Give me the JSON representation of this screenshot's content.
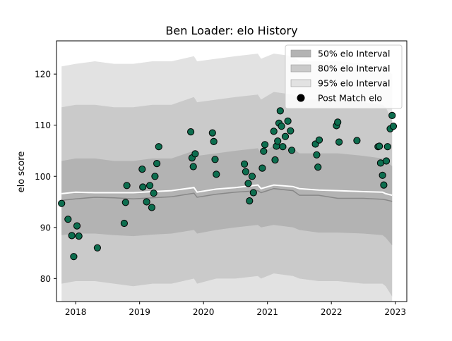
{
  "chart_data": {
    "type": "scatter",
    "title": "Ben Loader: elo History",
    "xlabel": "",
    "ylabel": "elo score",
    "xlim": [
      2017.7,
      2023.18
    ],
    "ylim": [
      75.5,
      126.5
    ],
    "x_ticks": [
      2018,
      2019,
      2020,
      2021,
      2022,
      2023
    ],
    "x_tick_labels": [
      "2018",
      "2019",
      "2020",
      "2021",
      "2022",
      "2023"
    ],
    "y_ticks": [
      80,
      90,
      100,
      110,
      120
    ],
    "y_tick_labels": [
      "80",
      "90",
      "100",
      "110",
      "120"
    ],
    "grid": false,
    "legend": {
      "position": "top-right",
      "entries": [
        {
          "label": "50% elo Interval",
          "kind": "patch",
          "color": "#b3b3b3"
        },
        {
          "label": "80% elo Interval",
          "kind": "patch",
          "color": "#cacaca"
        },
        {
          "label": "95% elo Interval",
          "kind": "patch",
          "color": "#e2e2e2"
        },
        {
          "label": "Post Match elo",
          "kind": "marker",
          "color": "#000000"
        }
      ]
    },
    "colors": {
      "band_50": "#b3b3b3",
      "band_80": "#cacaca",
      "band_95": "#e2e2e2",
      "mean_line": "#ffffff",
      "median_line": "#888888",
      "point_fill": "#0d6e4f",
      "point_edge": "#000000"
    },
    "bands": {
      "x": [
        2017.78,
        2018.0,
        2018.3,
        2018.6,
        2018.9,
        2019.2,
        2019.5,
        2019.85,
        2019.9,
        2020.2,
        2020.5,
        2020.85,
        2020.9,
        2021.1,
        2021.4,
        2021.5,
        2021.8,
        2022.1,
        2022.5,
        2022.8,
        2022.85,
        2022.95
      ],
      "upper_95": [
        121.5,
        122,
        122.5,
        122,
        122,
        122.5,
        122.5,
        123.5,
        122.5,
        123,
        123.5,
        124,
        123,
        124,
        123.5,
        122.5,
        122.5,
        122.5,
        122,
        121.5,
        121,
        120
      ],
      "upper_80": [
        113.5,
        114,
        114,
        113.5,
        113.5,
        114,
        114,
        115.5,
        114.5,
        115,
        115.5,
        116,
        115,
        116.5,
        116,
        115,
        115,
        115,
        114.5,
        114,
        113.5,
        111
      ],
      "upper_50": [
        103,
        103.5,
        103.5,
        103,
        103,
        103.5,
        103.5,
        105,
        104,
        104.5,
        105,
        105.5,
        104.5,
        106,
        105.5,
        104.5,
        104.5,
        104.5,
        104,
        103.5,
        103,
        102
      ],
      "mean": [
        96.6,
        96.9,
        96.8,
        96.8,
        96.8,
        97.0,
        97.2,
        97.8,
        96.9,
        97.5,
        97.8,
        98.3,
        97.6,
        98.3,
        98.0,
        97.6,
        97.3,
        97.2,
        97.0,
        96.9,
        96.6,
        96.3
      ],
      "median": [
        95.3,
        95.6,
        95.9,
        95.8,
        95.6,
        95.8,
        96.0,
        96.7,
        95.9,
        96.5,
        96.9,
        97.2,
        96.8,
        97.6,
        97.2,
        96.3,
        96.3,
        95.7,
        95.7,
        95.5,
        95.4,
        95.1
      ],
      "lower_50": [
        88.5,
        88.8,
        88.8,
        88.5,
        88.3,
        88.6,
        88.8,
        89.5,
        88.8,
        89.5,
        90,
        90.5,
        90,
        90.5,
        90,
        89.5,
        89,
        89,
        88.8,
        88.5,
        88,
        86.5
      ],
      "lower_80": [
        79,
        79.5,
        79.5,
        79,
        78.5,
        79,
        79,
        80,
        79,
        80,
        80,
        80.5,
        80,
        81,
        80.5,
        80,
        79.5,
        79.5,
        79,
        79,
        78.5,
        76.5
      ],
      "lower_95": [
        72,
        72.5,
        72.5,
        72,
        71.5,
        72,
        72,
        73,
        72,
        73,
        73,
        73.5,
        73,
        74,
        73.5,
        73,
        72.5,
        72.5,
        72,
        72,
        71.5,
        70
      ]
    },
    "points": {
      "x": [
        2017.78,
        2017.88,
        2017.94,
        2017.97,
        2018.02,
        2018.05,
        2018.34,
        2018.76,
        2018.78,
        2018.8,
        2019.04,
        2019.05,
        2019.11,
        2019.16,
        2019.19,
        2019.22,
        2019.24,
        2019.27,
        2019.3,
        2019.8,
        2019.82,
        2019.84,
        2019.87,
        2020.14,
        2020.16,
        2020.18,
        2020.2,
        2020.64,
        2020.66,
        2020.7,
        2020.72,
        2020.76,
        2020.78,
        2020.92,
        2020.94,
        2020.96,
        2021.1,
        2021.12,
        2021.14,
        2021.16,
        2021.18,
        2021.2,
        2021.22,
        2021.24,
        2021.28,
        2021.32,
        2021.36,
        2021.38,
        2021.75,
        2021.77,
        2021.79,
        2021.81,
        2022.08,
        2022.1,
        2022.12,
        2022.4,
        2022.73,
        2022.75,
        2022.77,
        2022.8,
        2022.82,
        2022.86,
        2022.88,
        2022.92,
        2022.95,
        2022.97
      ],
      "y": [
        94.7,
        91.6,
        88.4,
        84.3,
        90.3,
        88.3,
        86.0,
        90.8,
        94.9,
        98.2,
        101.4,
        97.9,
        95.0,
        98.2,
        93.9,
        96.7,
        100.0,
        102.5,
        105.8,
        108.7,
        103.6,
        101.9,
        104.4,
        108.5,
        106.8,
        103.3,
        100.4,
        102.4,
        100.9,
        98.6,
        95.2,
        100.0,
        96.8,
        101.6,
        104.9,
        106.2,
        108.8,
        103.2,
        105.9,
        106.9,
        110.4,
        112.8,
        109.8,
        105.8,
        107.8,
        110.8,
        108.9,
        105.1,
        106.3,
        104.2,
        101.8,
        107.1,
        109.9,
        110.6,
        106.7,
        107.0,
        105.8,
        105.9,
        102.6,
        100.2,
        98.3,
        103.0,
        105.8,
        109.3,
        111.9,
        109.8
      ]
    }
  }
}
